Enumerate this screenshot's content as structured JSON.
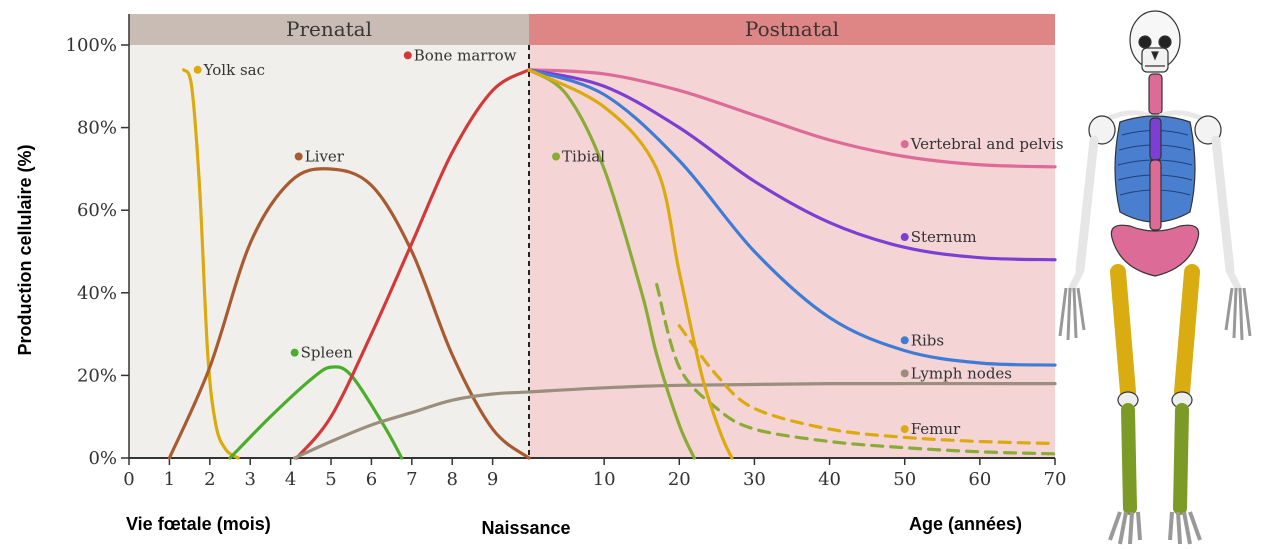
{
  "chart_data": {
    "type": "line",
    "title": "",
    "ylabel": "Production cellulaire (%)",
    "ylim": [
      0,
      100
    ],
    "y_ticks": [
      "0%",
      "20%",
      "40%",
      "60%",
      "80%",
      "100%"
    ],
    "y_tick_values": [
      0,
      20,
      40,
      60,
      80,
      100
    ],
    "x_axis_prenatal": {
      "label": "Vie fœtale (mois)",
      "ticks": [
        "0",
        "1",
        "2",
        "3",
        "4",
        "5",
        "6",
        "7",
        "8",
        "9"
      ],
      "range_months": [
        0,
        9.9
      ]
    },
    "x_axis_postnatal": {
      "label": "Age (années)",
      "ticks": [
        "10",
        "20",
        "30",
        "40",
        "50",
        "60",
        "70"
      ],
      "range_years": [
        0,
        70
      ]
    },
    "birth_label": "Naissance",
    "phases": [
      "Prenatal",
      "Postnatal"
    ],
    "grid": false,
    "legend": "inline labels",
    "colors": {
      "prenatal_band": "#c8bcb4",
      "prenatal_bg": "#f1efec",
      "postnatal_band": "#de8585",
      "postnatal_bg": "#f5d4d6"
    },
    "series": [
      {
        "name": "Yolk sac",
        "color": "#dbaa0f",
        "segment": "prenatal",
        "points": [
          [
            1.35,
            94
          ],
          [
            1.55,
            90
          ],
          [
            1.75,
            65
          ],
          [
            1.95,
            25
          ],
          [
            2.15,
            8
          ],
          [
            2.4,
            2
          ],
          [
            2.7,
            0
          ]
        ]
      },
      {
        "name": "Liver",
        "color": "#a85a30",
        "segment": "prenatal",
        "points": [
          [
            1.0,
            0
          ],
          [
            2.0,
            22
          ],
          [
            3.0,
            52
          ],
          [
            4.0,
            67
          ],
          [
            4.95,
            70
          ],
          [
            6.0,
            66
          ],
          [
            7.0,
            50
          ],
          [
            8.0,
            25
          ],
          [
            9.0,
            7
          ],
          [
            9.9,
            0
          ]
        ]
      },
      {
        "name": "Spleen",
        "color": "#4aae2a",
        "segment": "prenatal",
        "points": [
          [
            2.5,
            0
          ],
          [
            3.5,
            10
          ],
          [
            4.5,
            19
          ],
          [
            5.0,
            22
          ],
          [
            5.5,
            20
          ],
          [
            6.3,
            8
          ],
          [
            6.75,
            0
          ]
        ]
      },
      {
        "name": "Bone marrow",
        "color": "#d23a3a",
        "segment": "prenatal",
        "points": [
          [
            4.15,
            0
          ],
          [
            5.0,
            10
          ],
          [
            6.0,
            30
          ],
          [
            7.0,
            52
          ],
          [
            8.0,
            74
          ],
          [
            9.0,
            89
          ],
          [
            9.9,
            94
          ]
        ]
      },
      {
        "name": "Lymph nodes",
        "color": "#9a8e7c",
        "segment": "both",
        "prenatal_points": [
          [
            4.1,
            0
          ],
          [
            5.0,
            4
          ],
          [
            6.0,
            8
          ],
          [
            7.0,
            11
          ],
          [
            8.0,
            14
          ],
          [
            9.0,
            15.5
          ],
          [
            9.9,
            16
          ]
        ],
        "postnatal_points": [
          [
            0,
            16
          ],
          [
            10,
            17
          ],
          [
            20,
            17.6
          ],
          [
            40,
            18
          ],
          [
            70,
            18
          ]
        ]
      },
      {
        "name": "Vertebral and pelvis",
        "color": "#dd6b98",
        "segment": "postnatal",
        "points": [
          [
            0,
            94
          ],
          [
            10,
            93
          ],
          [
            20,
            89
          ],
          [
            30,
            83
          ],
          [
            40,
            77
          ],
          [
            50,
            73
          ],
          [
            60,
            71
          ],
          [
            70,
            70.5
          ]
        ]
      },
      {
        "name": "Sternum",
        "color": "#7b3fd4",
        "segment": "postnatal",
        "points": [
          [
            0,
            94
          ],
          [
            10,
            90
          ],
          [
            20,
            80
          ],
          [
            30,
            67
          ],
          [
            40,
            57
          ],
          [
            50,
            51
          ],
          [
            60,
            48.5
          ],
          [
            70,
            48
          ]
        ]
      },
      {
        "name": "Ribs",
        "color": "#3e7cd6",
        "segment": "postnatal",
        "points": [
          [
            0,
            94
          ],
          [
            10,
            88
          ],
          [
            20,
            72
          ],
          [
            30,
            50
          ],
          [
            40,
            34
          ],
          [
            50,
            26
          ],
          [
            60,
            23
          ],
          [
            70,
            22.5
          ]
        ]
      },
      {
        "name": "Tibial",
        "color": "#8aab36",
        "segment": "postnatal",
        "points": [
          [
            0,
            94
          ],
          [
            5,
            88
          ],
          [
            10,
            70
          ],
          [
            15,
            40
          ],
          [
            17,
            25
          ],
          [
            20,
            8
          ],
          [
            22,
            0
          ]
        ]
      },
      {
        "name": "Tibial (dashed)",
        "color": "#8aab36",
        "segment": "postnatal",
        "dashed": true,
        "points": [
          [
            17,
            42
          ],
          [
            20,
            22
          ],
          [
            25,
            12
          ],
          [
            30,
            7
          ],
          [
            40,
            4
          ],
          [
            50,
            2.5
          ],
          [
            60,
            1.5
          ],
          [
            70,
            1
          ]
        ]
      },
      {
        "name": "Femur",
        "color": "#dbaa0f",
        "segment": "postnatal",
        "points": [
          [
            0,
            94
          ],
          [
            10,
            85
          ],
          [
            17,
            70
          ],
          [
            20,
            45
          ],
          [
            23,
            20
          ],
          [
            25.5,
            6
          ],
          [
            27,
            0
          ]
        ]
      },
      {
        "name": "Femur (dashed)",
        "color": "#dbaa0f",
        "segment": "postnatal",
        "dashed": true,
        "points": [
          [
            20,
            32
          ],
          [
            25,
            20
          ],
          [
            30,
            12
          ],
          [
            40,
            7
          ],
          [
            50,
            5
          ],
          [
            60,
            4
          ],
          [
            70,
            3.5
          ]
        ]
      }
    ],
    "annotations": [
      {
        "text": "Yolk sac",
        "color": "#dbaa0f",
        "seg": "prenatal",
        "x": 1.7,
        "y": 94
      },
      {
        "text": "Liver",
        "color": "#a85a30",
        "seg": "prenatal",
        "x": 4.2,
        "y": 73
      },
      {
        "text": "Spleen",
        "color": "#4aae2a",
        "seg": "prenatal",
        "x": 4.1,
        "y": 25.5
      },
      {
        "text": "Bone marrow",
        "color": "#d23a3a",
        "seg": "prenatal",
        "x": 6.9,
        "y": 97.5
      },
      {
        "text": "Tibial",
        "color": "#8aab36",
        "seg": "postnatal",
        "x": 3.6,
        "y": 73
      },
      {
        "text": "Vertebral and pelvis",
        "color": "#dd6b98",
        "seg": "postnatal",
        "x": 50,
        "y": 76
      },
      {
        "text": "Sternum",
        "color": "#7b3fd4",
        "seg": "postnatal",
        "x": 50,
        "y": 53.5
      },
      {
        "text": "Ribs",
        "color": "#3e7cd6",
        "seg": "postnatal",
        "x": 50,
        "y": 28.5
      },
      {
        "text": "Lymph nodes",
        "color": "#9a8e7c",
        "seg": "postnatal",
        "x": 50,
        "y": 20.5
      },
      {
        "text": "Femur",
        "color": "#dbaa0f",
        "seg": "postnatal",
        "x": 50,
        "y": 7
      }
    ]
  }
}
